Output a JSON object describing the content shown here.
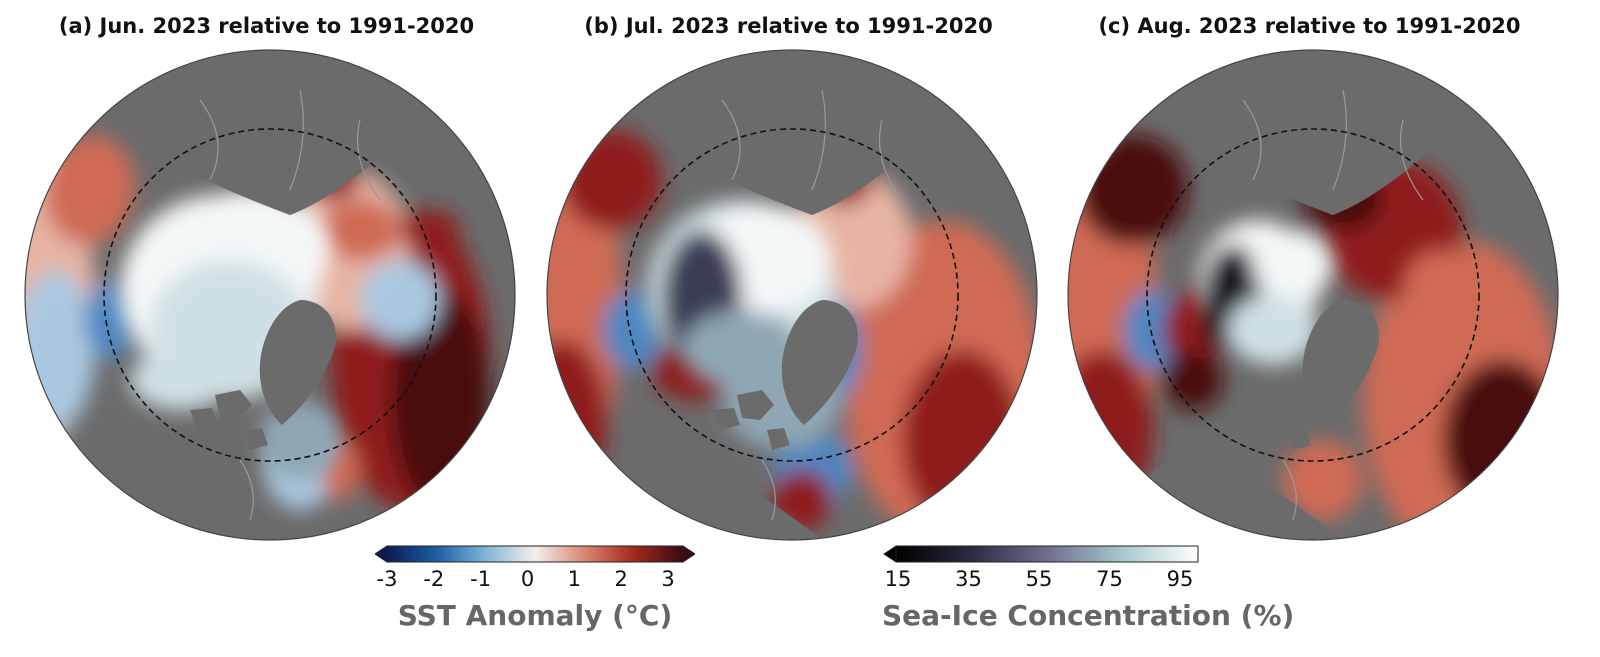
{
  "panels": [
    {
      "title": "(a) Jun. 2023 relative to 1991-2020"
    },
    {
      "title": "(b) Jul. 2023 relative to 1991-2020"
    },
    {
      "title": "(c) Aug. 2023 relative to 1991-2020"
    }
  ],
  "sst_colorbar": {
    "label": "SST Anomaly (°C)",
    "ticks": [
      "-3",
      "-2",
      "-1",
      "0",
      "1",
      "2",
      "3"
    ],
    "range": [
      -3,
      3
    ],
    "extend": "both",
    "colors": [
      "#0a1c52",
      "#1f5fa8",
      "#7fb3d6",
      "#f3efee",
      "#d98470",
      "#a42a1e",
      "#3a0a10"
    ]
  },
  "ice_colorbar": {
    "label": "Sea-Ice Concentration (%)",
    "ticks": [
      "15",
      "35",
      "55",
      "75",
      "95"
    ],
    "range": [
      15,
      100
    ],
    "extend": "min",
    "colors": [
      "#000000",
      "#2b2b45",
      "#6e6e8e",
      "#a8c8ce",
      "#ffffff"
    ]
  },
  "map_colors": {
    "land": "#6b6b6b",
    "coast": "#9a9a9a",
    "arctic_circle": "#111111"
  }
}
